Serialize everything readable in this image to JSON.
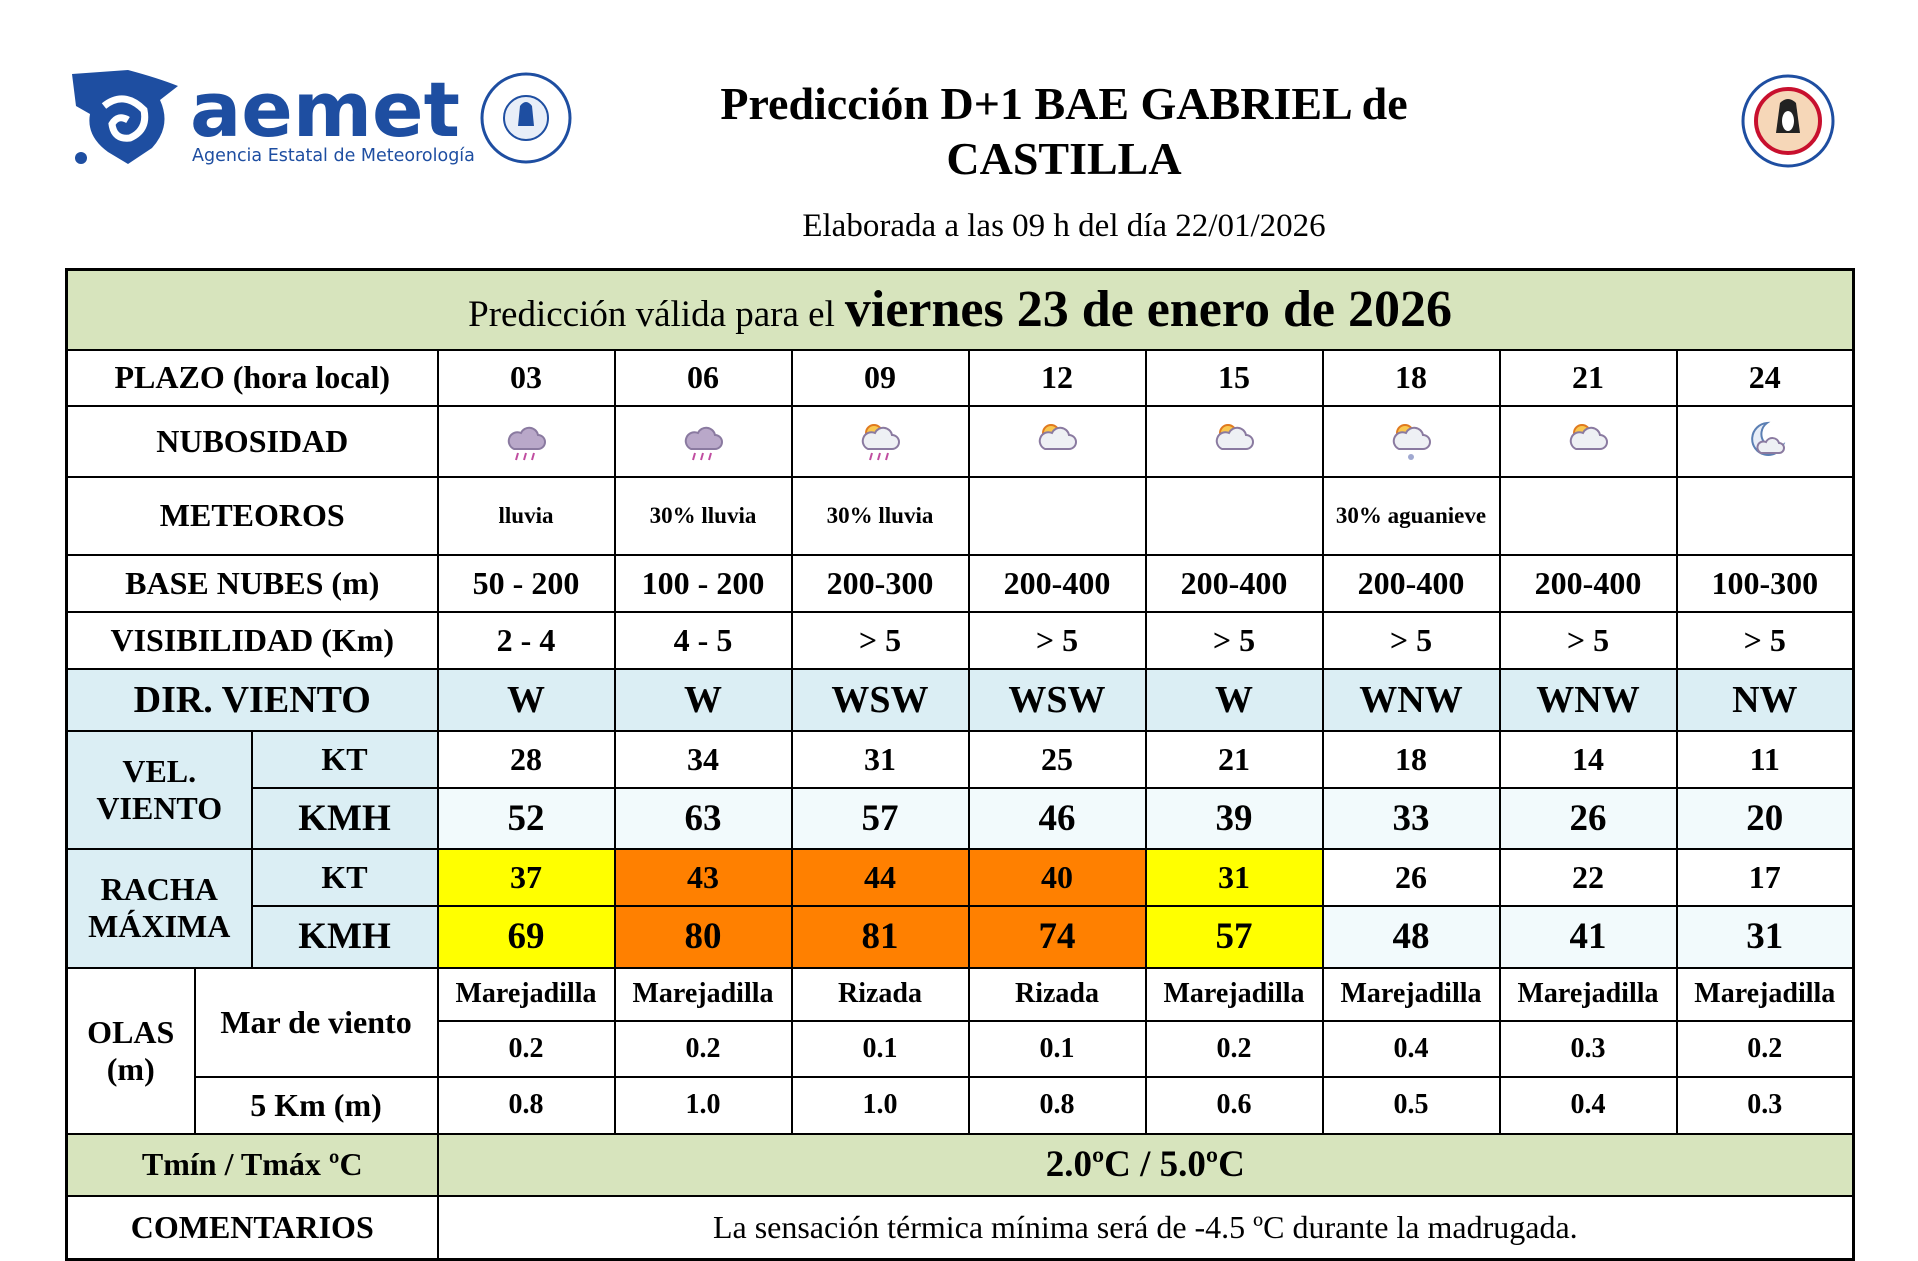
{
  "header": {
    "logo_text": "aemet",
    "logo_subtitle": "Agencia Estatal de Meteorología",
    "title": [
      "Predicción D+1 BAE GABRIEL de",
      "CASTILLA"
    ],
    "issued": "Elaborada a las 09 h del día 22/01/2026"
  },
  "table": {
    "valid_prefix": "Predicción válida para el",
    "valid_date": "viernes 23 de enero de 2026",
    "plazo": {
      "label": "PLAZO (hora local)",
      "values": [
        "03",
        "06",
        "09",
        "12",
        "15",
        "18",
        "21",
        "24"
      ]
    },
    "nubosidad": {
      "label": "NUBOSIDAD"
    },
    "meteoros": {
      "label": "METEOROS",
      "values": [
        "lluvia",
        "30% lluvia",
        "30% lluvia",
        null,
        null,
        "30% aguanieve",
        null,
        null
      ]
    },
    "base_nubes": {
      "label": "BASE NUBES (m)",
      "values": [
        "50 - 200",
        "100 - 200",
        "200-300",
        "200-400",
        "200-400",
        "200-400",
        "200-400",
        "100-300"
      ]
    },
    "visibilidad": {
      "label": "VISIBILIDAD (Km)",
      "values": [
        "2 - 4",
        "4 - 5",
        "> 5",
        "> 5",
        "> 5",
        "> 5",
        "> 5",
        "> 5"
      ]
    },
    "dir_viento": {
      "label": "DIR. VIENTO",
      "values": [
        "W",
        "W",
        "WSW",
        "WSW",
        "W",
        "WNW",
        "WNW",
        "NW"
      ]
    },
    "vel_viento": {
      "label": "VEL. VIENTO",
      "kt": {
        "label": "KT",
        "values": [
          28,
          34,
          31,
          25,
          21,
          18,
          14,
          11
        ]
      },
      "kmh": {
        "label": "KMH",
        "values": [
          52,
          63,
          57,
          46,
          39,
          33,
          26,
          20
        ]
      }
    },
    "racha_maxima": {
      "label": "RACHA MÁXIMA",
      "colors": [
        "#ffff00",
        "#ff8000",
        "#ff8000",
        "#ff8000",
        "#ffff00",
        null,
        null,
        null
      ],
      "kt": {
        "label": "KT",
        "values": [
          37,
          43,
          44,
          40,
          31,
          26,
          22,
          17
        ]
      },
      "kmh": {
        "label": "KMH",
        "values": [
          69,
          80,
          81,
          74,
          57,
          48,
          41,
          31
        ]
      }
    },
    "olas": {
      "label": "OLAS (m)",
      "mar_de_viento": {
        "label": "Mar de viento",
        "states": [
          "Marejadilla",
          "Marejadilla",
          "Rizada",
          "Rizada",
          "Marejadilla",
          "Marejadilla",
          "Marejadilla",
          "Marejadilla"
        ],
        "values": [
          "0.2",
          "0.2",
          "0.1",
          "0.1",
          "0.2",
          "0.4",
          "0.3",
          "0.2"
        ]
      },
      "cinco_km": {
        "label": "5 Km (m)",
        "values": [
          "0.8",
          "1.0",
          "1.0",
          "0.8",
          "0.6",
          "0.5",
          "0.4",
          "0.3"
        ]
      }
    },
    "temperatura": {
      "label": "Tmín / Tmáx ºC",
      "value": "2.0ºC / 5.0ºC"
    },
    "comentarios": {
      "label": "COMENTARIOS",
      "value": "La sensación térmica mínima será de -4.5 ºC durante la madrugada."
    }
  }
}
